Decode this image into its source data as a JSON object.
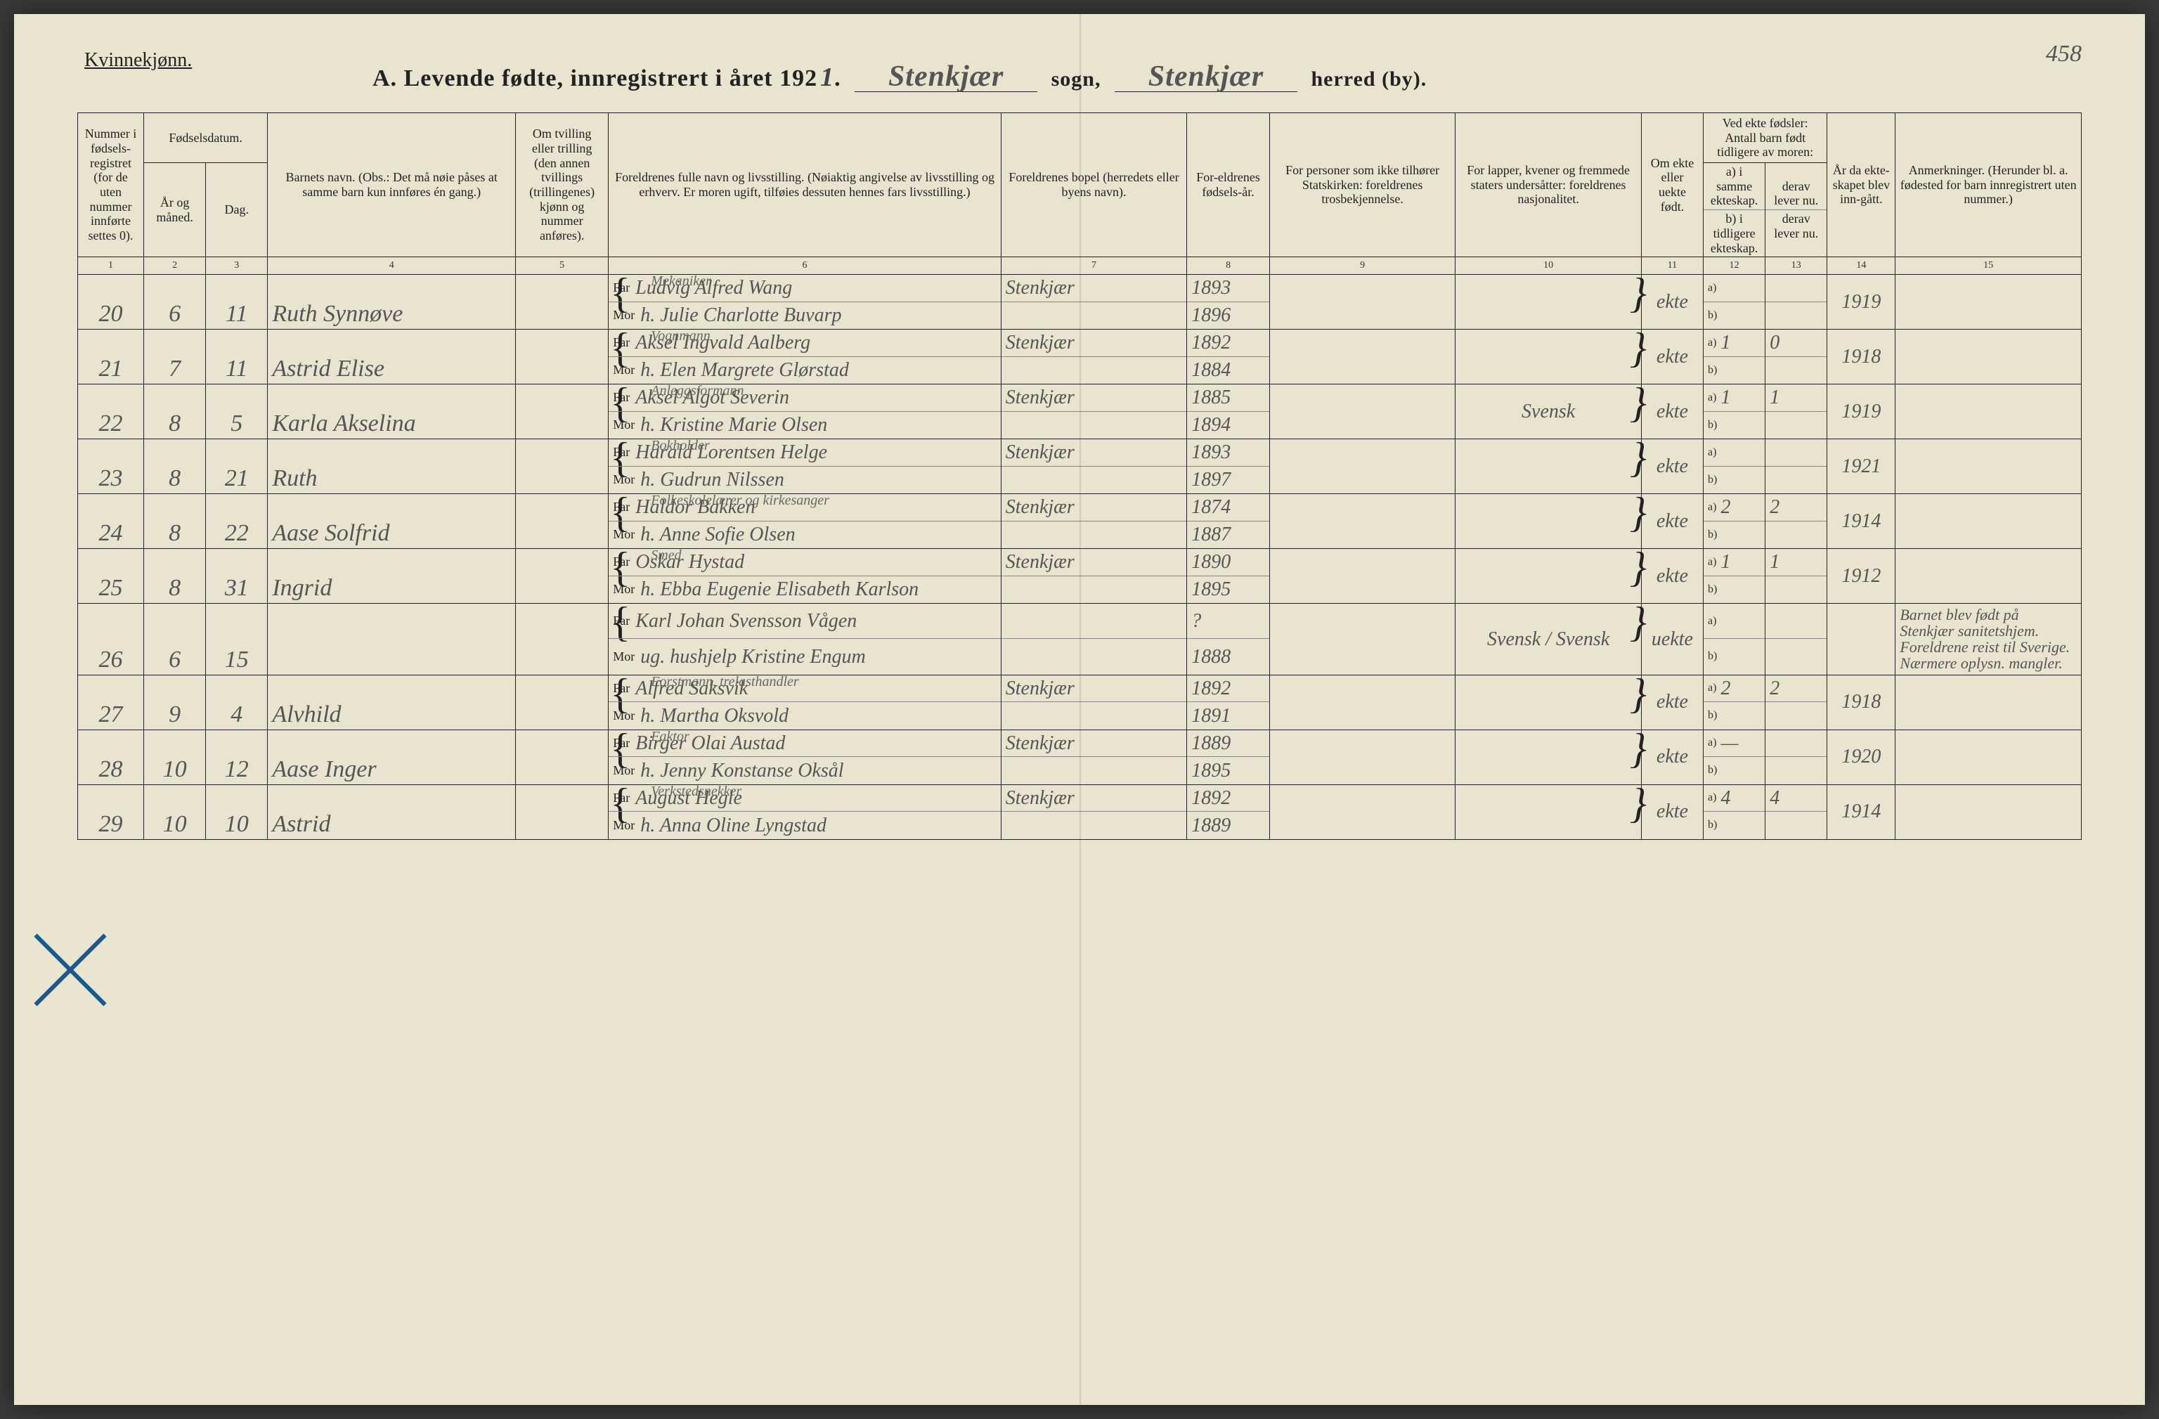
{
  "page": {
    "gender_label": "Kvinnekjønn.",
    "title_prefix": "A.   Levende fødte, innregistrert i året 192",
    "year_digit": "1",
    "sogn_value": "Stenkjær",
    "sogn_label": "sogn,",
    "herred_value": "Stenkjær",
    "herred_label": "herred (by).",
    "page_number": "458"
  },
  "columns": {
    "c1": "Nummer i fødsels-registret (for de uten nummer innførte settes 0).",
    "c2_group": "Fødselsdatum.",
    "c2": "År og måned.",
    "c3": "Dag.",
    "c4": "Barnets navn.\n(Obs.: Det må nøie påses at samme barn kun innføres én gang.)",
    "c5": "Om tvilling eller trilling (den annen tvillings (trillingenes) kjønn og nummer anføres).",
    "c6": "Foreldrenes fulle navn og livsstilling.\n(Nøiaktig angivelse av livsstilling og erhverv. Er moren ugift, tilføies dessuten hennes fars livsstilling.)",
    "c7": "Foreldrenes bopel (herredets eller byens navn).",
    "c8": "For-eldrenes fødsels-år.",
    "c9": "For personer som ikke tilhører Statskirken: foreldrenes trosbekjennelse.",
    "c10": "For lapper, kvener og fremmede staters undersåtter: foreldrenes nasjonalitet.",
    "c11": "Om ekte eller uekte født.",
    "c12_group": "Ved ekte fødsler:\nAntall barn født tidligere av moren:",
    "c12a": "a) i samme ekteskap.",
    "c12b": "b) i tidligere ekteskap.",
    "c13a": "derav lever nu.",
    "c13b": "derav lever nu.",
    "c14": "År da ekte-skapet blev inn-gått.",
    "c15": "Anmerkninger.\n(Herunder bl. a. fødested for barn innregistrert uten nummer.)",
    "far_label": "Far",
    "mor_label": "Mor",
    "col_nums": [
      "1",
      "2",
      "3",
      "4",
      "5",
      "6",
      "7",
      "8",
      "9",
      "10",
      "11",
      "12",
      "13",
      "14",
      "15"
    ]
  },
  "rows": [
    {
      "num": "20",
      "month": "6",
      "day": "11",
      "name": "Ruth Synnøve",
      "far_occ": "Mekaniker",
      "far": "Ludvig Alfred Wang",
      "mor": "h. Julie Charlotte Buvarp",
      "bopel": "Stenkjær",
      "far_year": "1893",
      "mor_year": "1896",
      "national": "",
      "ekte": "ekte",
      "a": "",
      "a_lev": "",
      "year_m": "1919",
      "remark": ""
    },
    {
      "num": "21",
      "month": "7",
      "day": "11",
      "name": "Astrid Elise",
      "far_occ": "Vognmann",
      "far": "Aksel Ingvald Aalberg",
      "mor": "h. Elen Margrete Glørstad",
      "bopel": "Stenkjær",
      "far_year": "1892",
      "mor_year": "1884",
      "national": "",
      "ekte": "ekte",
      "a": "1",
      "a_lev": "0",
      "year_m": "1918",
      "remark": ""
    },
    {
      "num": "22",
      "month": "8",
      "day": "5",
      "name": "Karla Akselina",
      "far_occ": "Anleggsformann",
      "far": "Aksel Algot Severin",
      "mor": "h. Kristine Marie Olsen",
      "bopel": "Stenkjær",
      "far_year": "1885",
      "mor_year": "1894",
      "national": "Svensk",
      "ekte": "ekte",
      "a": "1",
      "a_lev": "1",
      "year_m": "1919",
      "remark": ""
    },
    {
      "num": "23",
      "month": "8",
      "day": "21",
      "name": "Ruth",
      "far_occ": "Bokholder",
      "far": "Harald Lorentsen Helge",
      "mor": "h. Gudrun Nilssen",
      "bopel": "Stenkjær",
      "far_year": "1893",
      "mor_year": "1897",
      "national": "",
      "ekte": "ekte",
      "a": "",
      "a_lev": "",
      "year_m": "1921",
      "remark": ""
    },
    {
      "num": "24",
      "month": "8",
      "day": "22",
      "name": "Aase Solfrid",
      "far_occ": "Folkeskolelærer og kirkesanger",
      "far": "Haldor Bakken",
      "mor": "h. Anne Sofie Olsen",
      "bopel": "Stenkjær",
      "far_year": "1874",
      "mor_year": "1887",
      "national": "",
      "ekte": "ekte",
      "a": "2",
      "a_lev": "2",
      "year_m": "1914",
      "remark": ""
    },
    {
      "num": "25",
      "month": "8",
      "day": "31",
      "name": "Ingrid",
      "far_occ": "Smed",
      "far": "Oskar Hystad",
      "mor": "h. Ebba Eugenie Elisabeth Karlson",
      "bopel": "Stenkjær",
      "far_year": "1890",
      "mor_year": "1895",
      "national": "",
      "ekte": "ekte",
      "a": "1",
      "a_lev": "1",
      "year_m": "1912",
      "remark": ""
    },
    {
      "num": "26",
      "month": "6",
      "day": "15",
      "name": "",
      "far_occ": "",
      "far": "Karl Johan Svensson Vågen",
      "mor": "ug. hushjelp Kristine Engum",
      "bopel": "",
      "far_year": "?",
      "mor_year": "1888",
      "national": "Svensk / Svensk",
      "ekte": "uekte",
      "a": "",
      "a_lev": "",
      "year_m": "",
      "remark": "Barnet blev født på Stenkjær sanitetshjem. Foreldrene reist til Sverige. Nærmere oplysn. mangler.",
      "crossed": true,
      "blue": true
    },
    {
      "num": "27",
      "month": "9",
      "day": "4",
      "name": "Alvhild",
      "far_occ": "Forstmann, trelasthandler",
      "far": "Alfred Saksvik",
      "mor": "h. Martha Oksvold",
      "bopel": "Stenkjær",
      "far_year": "1892",
      "mor_year": "1891",
      "national": "",
      "ekte": "ekte",
      "a": "2",
      "a_lev": "2",
      "year_m": "1918",
      "remark": ""
    },
    {
      "num": "28",
      "month": "10",
      "day": "12",
      "name": "Aase Inger",
      "far_occ": "Faktor",
      "far": "Birger Olai Austad",
      "mor": "h. Jenny Konstanse Oksål",
      "bopel": "Stenkjær",
      "far_year": "1889",
      "mor_year": "1895",
      "national": "",
      "ekte": "ekte",
      "a": "—",
      "a_lev": "",
      "year_m": "1920",
      "remark": ""
    },
    {
      "num": "29",
      "month": "10",
      "day": "10",
      "name": "Astrid",
      "far_occ": "Verkstedsnekker",
      "far": "August Hegle",
      "mor": "h. Anna Oline Lyngstad",
      "bopel": "Stenkjær",
      "far_year": "1892",
      "mor_year": "1889",
      "national": "",
      "ekte": "ekte",
      "a": "4",
      "a_lev": "4",
      "year_m": "1914",
      "remark": ""
    }
  ],
  "style": {
    "page_bg": "#e8e4d0",
    "ink": "#222222",
    "handwriting": "#555555",
    "blue_mark": "#1a5a8a",
    "border": "#222222",
    "col_widths_pct": [
      3.2,
      3.0,
      3.0,
      12.0,
      4.5,
      19.0,
      9.0,
      4.0,
      9.0,
      9.0,
      3.0,
      3.0,
      3.0,
      3.3,
      9.0
    ]
  }
}
